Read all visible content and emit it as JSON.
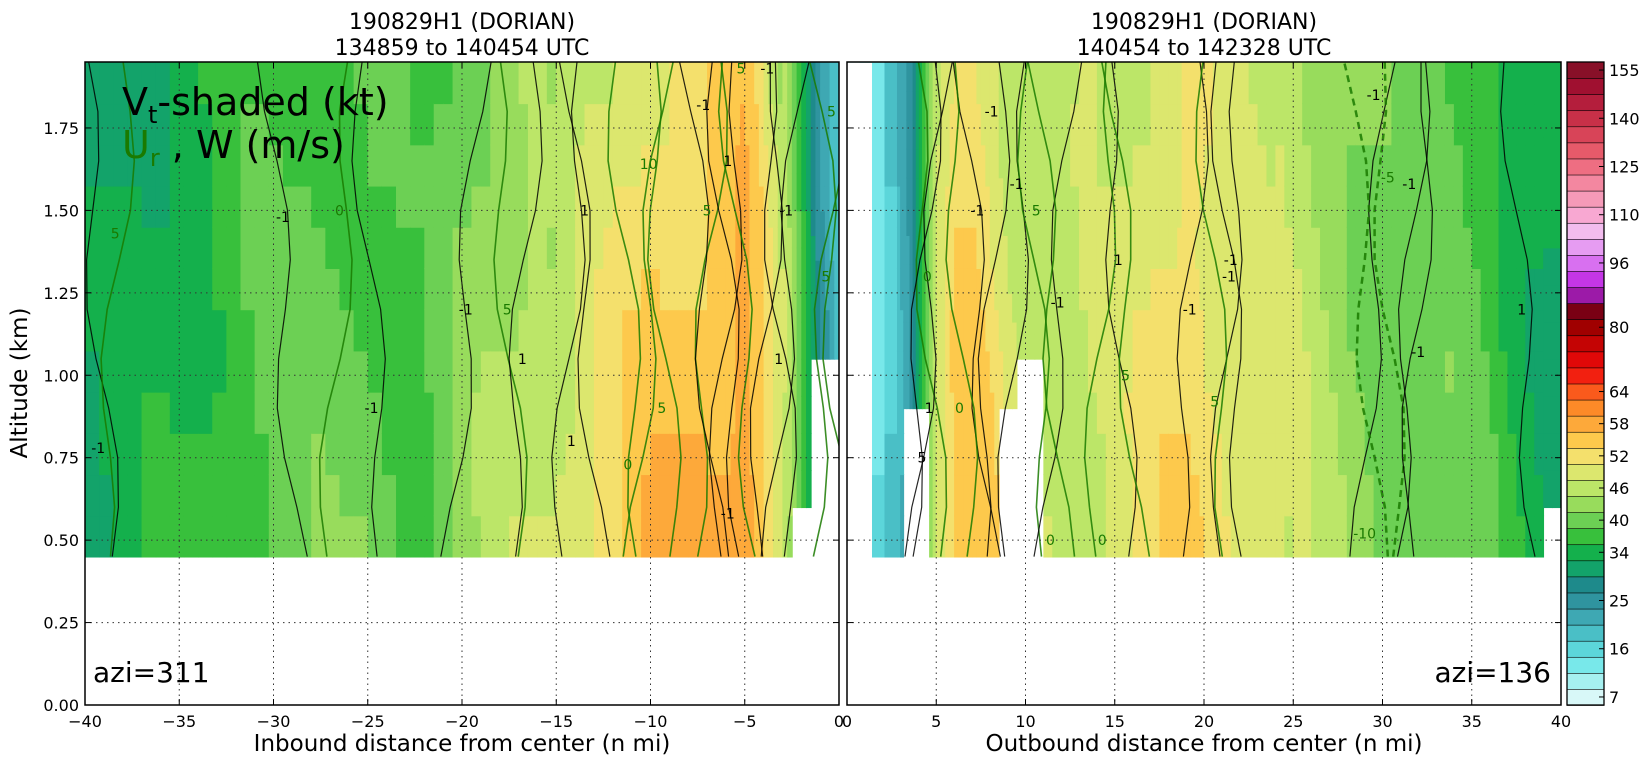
{
  "chart_data": [
    {
      "type": "heatmap",
      "panel": "left",
      "title_line1": "190829H1 (DORIAN)",
      "title_line2": "134859 to 140454 UTC",
      "xlabel": "Inbound distance from center (n mi)",
      "ylabel": "Altitude (km)",
      "xlim": [
        -40,
        0
      ],
      "ylim": [
        0,
        1.95
      ],
      "xticks": [
        -40,
        -35,
        -30,
        -25,
        -20,
        -15,
        -10,
        -5,
        0
      ],
      "xtick_labels": [
        "−40",
        "−35",
        "−30",
        "−25",
        "−20",
        "−15",
        "−10",
        "−5",
        "0"
      ],
      "yticks": [
        0.0,
        0.25,
        0.5,
        0.75,
        1.0,
        1.25,
        1.5,
        1.75
      ],
      "ytick_labels": [
        "0.00",
        "0.25",
        "0.50",
        "0.75",
        "1.00",
        "1.25",
        "1.50",
        "1.75"
      ],
      "grid": true,
      "legend_line1": "Vt-shaded (kt)",
      "legend_line2": "Ur , W (m/s)",
      "annotation": "azi=311",
      "x": [
        -40,
        -37,
        -34,
        -31,
        -28,
        -25,
        -22,
        -20,
        -18,
        -16,
        -14,
        -12,
        -10,
        -8,
        -6,
        -5,
        -4,
        -3,
        -2,
        -1,
        0
      ],
      "vt_profile_kt": [
        34,
        36,
        38,
        41,
        42,
        42,
        40,
        44,
        47,
        49,
        52,
        55,
        58,
        59,
        60,
        62,
        57,
        50,
        40,
        28,
        22
      ],
      "data_bottom_km": [
        0.45,
        0.45,
        0.45,
        0.45,
        0.45,
        0.45,
        0.45,
        0.45,
        0.45,
        0.45,
        0.45,
        0.45,
        0.45,
        0.45,
        0.45,
        0.45,
        0.45,
        0.45,
        0.6,
        1.05,
        1.05
      ],
      "contour_labels": [
        {
          "text": "-1",
          "x": -39.3,
          "y": 0.78,
          "color": "#000000"
        },
        {
          "text": "5",
          "x": -38.4,
          "y": 1.43,
          "color": "#1a7a00"
        },
        {
          "text": "-1",
          "x": -29.5,
          "y": 1.48,
          "color": "#000000"
        },
        {
          "text": "0",
          "x": -26.5,
          "y": 1.5,
          "color": "#1a7a00"
        },
        {
          "text": "-1",
          "x": -24.8,
          "y": 0.9,
          "color": "#000000"
        },
        {
          "text": "-1",
          "x": -19.8,
          "y": 1.2,
          "color": "#000000"
        },
        {
          "text": "5",
          "x": -17.6,
          "y": 1.2,
          "color": "#1a7a00"
        },
        {
          "text": "1",
          "x": -16.8,
          "y": 1.05,
          "color": "#000000"
        },
        {
          "text": "1",
          "x": -13.5,
          "y": 1.5,
          "color": "#000000"
        },
        {
          "text": "1",
          "x": -14.2,
          "y": 0.8,
          "color": "#000000"
        },
        {
          "text": "0",
          "x": -11.2,
          "y": 0.73,
          "color": "#1a7a00"
        },
        {
          "text": "10",
          "x": -10.1,
          "y": 1.64,
          "color": "#1a7a00"
        },
        {
          "text": "5",
          "x": -9.4,
          "y": 0.9,
          "color": "#1a7a00"
        },
        {
          "text": "5",
          "x": -7.0,
          "y": 1.5,
          "color": "#1a7a00"
        },
        {
          "text": "-1",
          "x": -7.2,
          "y": 1.82,
          "color": "#000000"
        },
        {
          "text": "1",
          "x": -5.9,
          "y": 1.65,
          "color": "#000000"
        },
        {
          "text": "-1",
          "x": -5.9,
          "y": 0.58,
          "color": "#000000"
        },
        {
          "text": "-1",
          "x": -2.8,
          "y": 1.5,
          "color": "#000000"
        },
        {
          "text": "1",
          "x": -3.2,
          "y": 1.05,
          "color": "#000000"
        },
        {
          "text": "5",
          "x": -0.7,
          "y": 1.3,
          "color": "#1a7a00"
        },
        {
          "text": "5",
          "x": -0.4,
          "y": 1.8,
          "color": "#1a7a00"
        },
        {
          "text": "-1",
          "x": -3.8,
          "y": 1.93,
          "color": "#000000"
        },
        {
          "text": "5",
          "x": -5.2,
          "y": 1.93,
          "color": "#1a7a00"
        }
      ]
    },
    {
      "type": "heatmap",
      "panel": "right",
      "title_line1": "190829H1 (DORIAN)",
      "title_line2": "140454 to 142328 UTC",
      "xlabel": "Outbound distance from center (n mi)",
      "xlim": [
        0,
        40
      ],
      "ylim": [
        0,
        1.95
      ],
      "xticks": [
        0,
        5,
        10,
        15,
        20,
        25,
        30,
        35,
        40
      ],
      "xtick_labels": [
        "0",
        "5",
        "10",
        "15",
        "20",
        "25",
        "30",
        "35",
        "40"
      ],
      "grid": true,
      "annotation": "azi=136",
      "x": [
        0,
        2.8,
        3.5,
        4.2,
        5,
        6,
        7,
        8,
        9,
        10,
        12,
        14,
        16,
        18,
        19,
        20,
        22,
        24,
        26,
        28,
        30,
        32,
        34,
        36,
        38,
        40
      ],
      "vt_profile_kt": [
        7,
        22,
        26,
        37,
        50,
        56,
        57,
        55,
        52,
        50,
        48,
        50,
        52,
        55,
        56,
        55,
        52,
        50,
        48,
        45,
        43,
        42,
        42,
        40,
        36,
        34
      ],
      "data_bottom_km": [
        1.95,
        0.45,
        0.9,
        0.9,
        0.45,
        0.45,
        0.45,
        0.45,
        0.9,
        1.05,
        0.45,
        0.45,
        0.45,
        0.45,
        0.45,
        0.45,
        0.45,
        0.45,
        0.45,
        0.45,
        0.45,
        0.45,
        0.45,
        0.45,
        0.45,
        0.6
      ],
      "contour_labels": [
        {
          "text": "0",
          "x": 4.5,
          "y": 1.3,
          "color": "#1a7a00"
        },
        {
          "text": "-1",
          "x": 8.1,
          "y": 1.8,
          "color": "#000000"
        },
        {
          "text": "-1",
          "x": 7.3,
          "y": 1.5,
          "color": "#000000"
        },
        {
          "text": "-1",
          "x": 9.5,
          "y": 1.58,
          "color": "#000000"
        },
        {
          "text": "5",
          "x": 10.6,
          "y": 1.5,
          "color": "#1a7a00"
        },
        {
          "text": "-1",
          "x": 11.8,
          "y": 1.22,
          "color": "#000000"
        },
        {
          "text": "1",
          "x": 15.2,
          "y": 1.35,
          "color": "#000000"
        },
        {
          "text": "-1",
          "x": 19.2,
          "y": 1.2,
          "color": "#000000"
        },
        {
          "text": "5",
          "x": 15.6,
          "y": 1.0,
          "color": "#1a7a00"
        },
        {
          "text": "-1",
          "x": 21.4,
          "y": 1.3,
          "color": "#000000"
        },
        {
          "text": "5",
          "x": 20.6,
          "y": 0.92,
          "color": "#1a7a00"
        },
        {
          "text": "1",
          "x": 4.6,
          "y": 0.9,
          "color": "#000000"
        },
        {
          "text": "0",
          "x": 6.3,
          "y": 0.9,
          "color": "#1a7a00"
        },
        {
          "text": "5",
          "x": 4.2,
          "y": 0.75,
          "color": "#000000"
        },
        {
          "text": "0",
          "x": 11.4,
          "y": 0.5,
          "color": "#1a7a00"
        },
        {
          "text": "0",
          "x": 14.3,
          "y": 0.5,
          "color": "#1a7a00"
        },
        {
          "text": "-1",
          "x": 21.5,
          "y": 1.35,
          "color": "#000000"
        },
        {
          "text": "-1",
          "x": 29.5,
          "y": 1.85,
          "color": "#000000"
        },
        {
          "text": "-5",
          "x": 30.3,
          "y": 1.6,
          "color": "#1a7a00"
        },
        {
          "text": "-1",
          "x": 31.5,
          "y": 1.58,
          "color": "#000000"
        },
        {
          "text": "-10",
          "x": 29.0,
          "y": 0.52,
          "color": "#1a7a00"
        },
        {
          "text": "-1",
          "x": 32.0,
          "y": 1.07,
          "color": "#000000"
        },
        {
          "text": "1",
          "x": 37.8,
          "y": 1.2,
          "color": "#000000"
        }
      ]
    }
  ],
  "colorbar": {
    "levels_kt": [
      7,
      10,
      13,
      16,
      19,
      22,
      25,
      28,
      31,
      34,
      37,
      40,
      43,
      46,
      49,
      52,
      55,
      58,
      61,
      64,
      68,
      72,
      76,
      80,
      84,
      88,
      92,
      96,
      100,
      105,
      110,
      115,
      120,
      125,
      130,
      135,
      140,
      145,
      150,
      155
    ],
    "tick_labels": [
      "7",
      "16",
      "25",
      "34",
      "40",
      "46",
      "52",
      "58",
      "64",
      "80",
      "96",
      "110",
      "125",
      "140",
      "155"
    ],
    "colors": [
      "#d8f8f8",
      "#a6f0f0",
      "#78e8ea",
      "#5cd6da",
      "#4abfc6",
      "#3ea8b3",
      "#2f949f",
      "#1e8a8b",
      "#13a36a",
      "#14b04c",
      "#38c03c",
      "#6cd054",
      "#98dc5c",
      "#bce668",
      "#dce76e",
      "#f4e06c",
      "#fdc94c",
      "#fda93a",
      "#fd8a28",
      "#fa5a1c",
      "#f22010",
      "#e00808",
      "#c40404",
      "#a00000",
      "#7a0014",
      "#9c1aa8",
      "#c436e6",
      "#d870f0",
      "#e69cf2",
      "#f2bcee",
      "#f8a8d2",
      "#f59ab8",
      "#f387a0",
      "#ee6e82",
      "#e65a6a",
      "#d84458",
      "#c83048",
      "#b41e3c",
      "#a01030",
      "#881028"
    ]
  }
}
